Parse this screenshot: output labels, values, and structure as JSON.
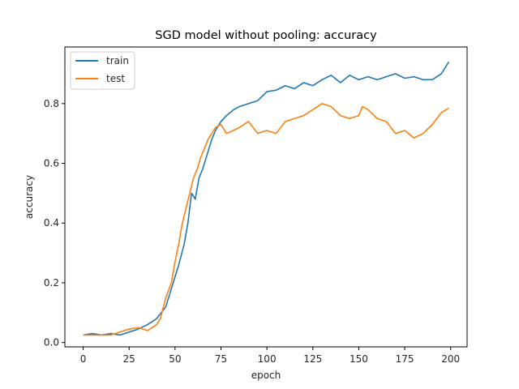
{
  "chart_data": {
    "type": "line",
    "title": "SGD model without pooling: accuracy",
    "xlabel": "epoch",
    "ylabel": "accuracy",
    "xlim": [
      -9.95,
      208.95
    ],
    "ylim": [
      -0.0145,
      0.9895
    ],
    "xticks": [
      0,
      25,
      50,
      75,
      100,
      125,
      150,
      175,
      200
    ],
    "yticks": [
      0.0,
      0.2,
      0.4,
      0.6,
      0.8
    ],
    "ytick_labels": [
      "0.0",
      "0.2",
      "0.4",
      "0.6",
      "0.8"
    ],
    "grid": false,
    "legend_position": "upper-left",
    "series": [
      {
        "name": "train",
        "color": "#1f77b4",
        "points": [
          [
            0,
            0.025
          ],
          [
            5,
            0.03
          ],
          [
            10,
            0.025
          ],
          [
            15,
            0.03
          ],
          [
            20,
            0.025
          ],
          [
            25,
            0.035
          ],
          [
            30,
            0.045
          ],
          [
            35,
            0.06
          ],
          [
            40,
            0.08
          ],
          [
            45,
            0.12
          ],
          [
            48,
            0.18
          ],
          [
            50,
            0.22
          ],
          [
            52,
            0.26
          ],
          [
            55,
            0.33
          ],
          [
            57,
            0.4
          ],
          [
            59,
            0.5
          ],
          [
            61,
            0.48
          ],
          [
            63,
            0.55
          ],
          [
            65,
            0.58
          ],
          [
            67,
            0.62
          ],
          [
            70,
            0.68
          ],
          [
            72,
            0.71
          ],
          [
            75,
            0.74
          ],
          [
            78,
            0.76
          ],
          [
            82,
            0.78
          ],
          [
            85,
            0.79
          ],
          [
            90,
            0.8
          ],
          [
            95,
            0.81
          ],
          [
            100,
            0.84
          ],
          [
            105,
            0.845
          ],
          [
            110,
            0.86
          ],
          [
            115,
            0.85
          ],
          [
            120,
            0.87
          ],
          [
            125,
            0.86
          ],
          [
            130,
            0.88
          ],
          [
            135,
            0.895
          ],
          [
            140,
            0.87
          ],
          [
            145,
            0.895
          ],
          [
            150,
            0.88
          ],
          [
            155,
            0.89
          ],
          [
            160,
            0.88
          ],
          [
            165,
            0.89
          ],
          [
            170,
            0.9
          ],
          [
            175,
            0.885
          ],
          [
            180,
            0.89
          ],
          [
            185,
            0.88
          ],
          [
            190,
            0.88
          ],
          [
            195,
            0.9
          ],
          [
            199,
            0.94
          ]
        ]
      },
      {
        "name": "test",
        "color": "#ff7f0e",
        "points": [
          [
            0,
            0.025
          ],
          [
            5,
            0.025
          ],
          [
            10,
            0.025
          ],
          [
            15,
            0.025
          ],
          [
            20,
            0.035
          ],
          [
            25,
            0.045
          ],
          [
            30,
            0.05
          ],
          [
            35,
            0.04
          ],
          [
            40,
            0.06
          ],
          [
            42,
            0.08
          ],
          [
            45,
            0.15
          ],
          [
            48,
            0.2
          ],
          [
            50,
            0.27
          ],
          [
            52,
            0.33
          ],
          [
            54,
            0.4
          ],
          [
            56,
            0.45
          ],
          [
            58,
            0.5
          ],
          [
            60,
            0.55
          ],
          [
            62,
            0.58
          ],
          [
            64,
            0.62
          ],
          [
            66,
            0.65
          ],
          [
            68,
            0.68
          ],
          [
            70,
            0.7
          ],
          [
            72,
            0.72
          ],
          [
            75,
            0.73
          ],
          [
            78,
            0.7
          ],
          [
            80,
            0.705
          ],
          [
            85,
            0.72
          ],
          [
            90,
            0.74
          ],
          [
            95,
            0.7
          ],
          [
            100,
            0.71
          ],
          [
            105,
            0.7
          ],
          [
            110,
            0.74
          ],
          [
            115,
            0.75
          ],
          [
            120,
            0.76
          ],
          [
            125,
            0.78
          ],
          [
            130,
            0.8
          ],
          [
            135,
            0.79
          ],
          [
            140,
            0.76
          ],
          [
            145,
            0.75
          ],
          [
            150,
            0.76
          ],
          [
            152,
            0.79
          ],
          [
            155,
            0.78
          ],
          [
            160,
            0.75
          ],
          [
            165,
            0.74
          ],
          [
            170,
            0.7
          ],
          [
            175,
            0.71
          ],
          [
            180,
            0.685
          ],
          [
            185,
            0.7
          ],
          [
            190,
            0.73
          ],
          [
            195,
            0.77
          ],
          [
            199,
            0.785
          ]
        ]
      }
    ]
  }
}
